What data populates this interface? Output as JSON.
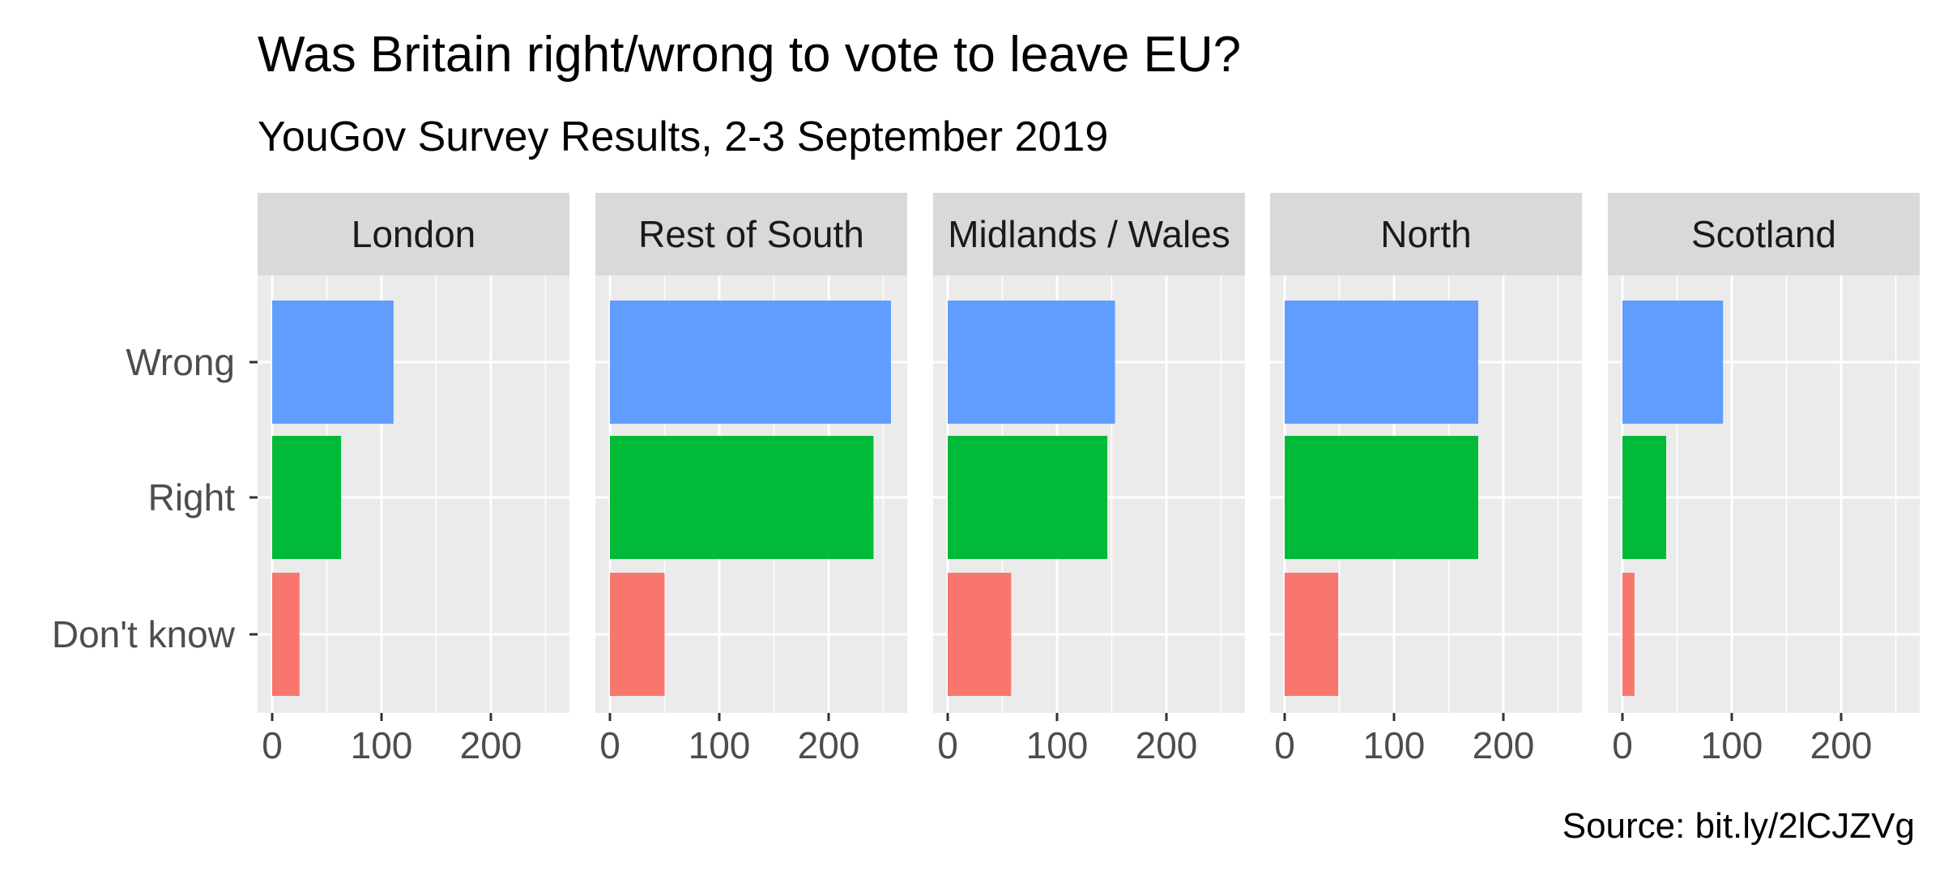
{
  "chart_data": {
    "type": "bar",
    "orientation": "horizontal",
    "faceted": true,
    "title": "Was Britain right/wrong to vote to leave EU?",
    "subtitle": "YouGov Survey Results, 2-3 September 2019",
    "caption": "Source: bit.ly/2lCJZVg",
    "categories": [
      "Wrong",
      "Right",
      "Don't know"
    ],
    "category_colors": {
      "Wrong": "#619CFF",
      "Right": "#00BA38",
      "Don't know": "#F8766D"
    },
    "xlim": [
      0,
      270
    ],
    "x_ticks": [
      0,
      100,
      200
    ],
    "grid": true,
    "legend": "none",
    "panel_background": "#EBEBEB",
    "strip_background": "#D9D9D9",
    "facets": [
      {
        "name": "London",
        "values": {
          "Wrong": 111,
          "Right": 63,
          "Don't know": 25
        }
      },
      {
        "name": "Rest of South",
        "values": {
          "Wrong": 257,
          "Right": 241,
          "Don't know": 50
        }
      },
      {
        "name": "Midlands / Wales",
        "values": {
          "Wrong": 153,
          "Right": 146,
          "Don't know": 58
        }
      },
      {
        "name": "North",
        "values": {
          "Wrong": 177,
          "Right": 177,
          "Don't know": 49
        }
      },
      {
        "name": "Scotland",
        "values": {
          "Wrong": 92,
          "Right": 40,
          "Don't know": 11
        }
      }
    ]
  }
}
